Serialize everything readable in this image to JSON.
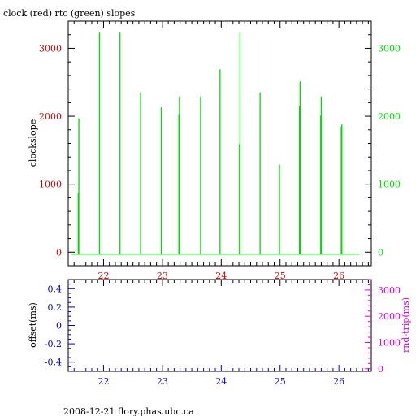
{
  "title": "clock (red) rtc (green) slopes",
  "footer": "2008-12-21 flory.phas.ubc.ca",
  "colors": {
    "clock": "#cc0000",
    "rtc": "#00dd00",
    "offset_axis": "#0000cc",
    "rndtrip_axis": "#dd00dd",
    "frame": "#000000"
  },
  "chart_data": [
    {
      "type": "line",
      "xlim": [
        21.4,
        26.55
      ],
      "ylim": [
        -200,
        3400
      ],
      "xticks": [
        22,
        23,
        24,
        25,
        26
      ],
      "xtick_labels": [
        "22",
        "23",
        "24",
        "25",
        "26"
      ],
      "yticks_left": [
        0,
        1000,
        2000,
        3000
      ],
      "ytick_labels_left": [
        "0",
        "1000",
        "2000",
        "3000"
      ],
      "yticks_right": [
        0,
        1000,
        2000,
        3000
      ],
      "ytick_labels_right": [
        "0",
        "1000",
        "2000",
        "3000"
      ],
      "ylabel": "clockslope",
      "baseline": -30,
      "series": [
        {
          "name": "rtc",
          "x_start": 21.45,
          "x_end": 26.35,
          "spikes": [
            {
              "x": 21.57,
              "y": 870
            },
            {
              "x": 21.58,
              "y": 1970
            },
            {
              "x": 21.93,
              "y": 3230
            },
            {
              "x": 22.28,
              "y": 3230
            },
            {
              "x": 22.63,
              "y": 2350
            },
            {
              "x": 22.98,
              "y": 2130
            },
            {
              "x": 23.28,
              "y": 2030
            },
            {
              "x": 23.29,
              "y": 2290
            },
            {
              "x": 23.65,
              "y": 2290
            },
            {
              "x": 23.98,
              "y": 2690
            },
            {
              "x": 24.31,
              "y": 1590
            },
            {
              "x": 24.32,
              "y": 3230
            },
            {
              "x": 24.66,
              "y": 2350
            },
            {
              "x": 24.99,
              "y": 1290
            },
            {
              "x": 25.33,
              "y": 2150
            },
            {
              "x": 25.34,
              "y": 2510
            },
            {
              "x": 25.69,
              "y": 2010
            },
            {
              "x": 25.7,
              "y": 2290
            },
            {
              "x": 26.04,
              "y": 1850
            },
            {
              "x": 26.05,
              "y": 1880
            }
          ]
        }
      ]
    },
    {
      "type": "line",
      "xlim": [
        21.4,
        26.55
      ],
      "ylim": [
        -0.5,
        0.5
      ],
      "xticks": [
        22,
        23,
        24,
        25,
        26
      ],
      "xtick_labels": [
        "22",
        "23",
        "24",
        "25",
        "26"
      ],
      "yticks_left": [
        -0.4,
        -0.2,
        0,
        0.2,
        0.4
      ],
      "ytick_labels_left": [
        "-0.4",
        "-0.2",
        "0",
        "0.2",
        "0.4"
      ],
      "ylabel_left": "offset(ms)",
      "ylim_right": [
        -100,
        3400
      ],
      "yticks_right": [
        0,
        1000,
        2000,
        3000
      ],
      "ytick_labels_right": [
        "0",
        "1000",
        "2000",
        "3000"
      ],
      "ylabel_right": "rnd-trip(ms)",
      "series": []
    }
  ]
}
